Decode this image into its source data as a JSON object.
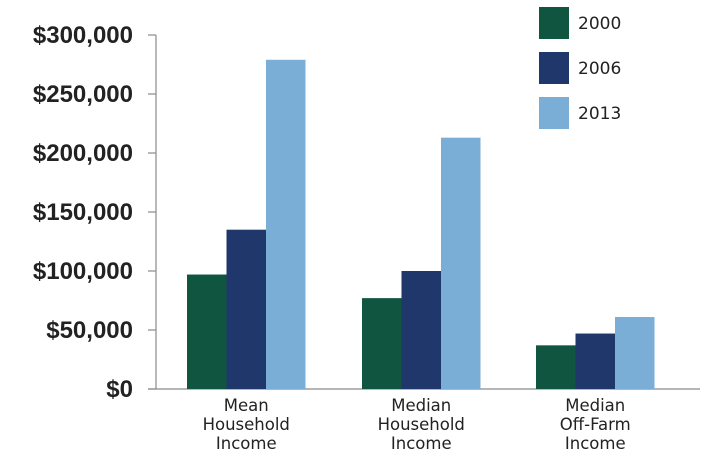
{
  "chart_data": {
    "type": "bar",
    "categories": [
      [
        "Mean",
        "Household",
        "Income"
      ],
      [
        "Median",
        "Household",
        "Income"
      ],
      [
        "Median",
        "Off-Farm",
        "Income"
      ]
    ],
    "series": [
      {
        "name": "2000",
        "color": "#10553f",
        "values": [
          97000,
          77000,
          37000
        ]
      },
      {
        "name": "2006",
        "color": "#1f376b",
        "values": [
          135000,
          100000,
          47000
        ]
      },
      {
        "name": "2013",
        "color": "#7aaed6",
        "values": [
          279000,
          213000,
          61000
        ]
      }
    ],
    "ylim": [
      0,
      300000
    ],
    "yticks": [
      0,
      50000,
      100000,
      150000,
      200000,
      250000,
      300000
    ],
    "ytick_labels": [
      "$0",
      "$50,000",
      "$100,000",
      "$150,000",
      "$200,000",
      "$250,000",
      "$300,000"
    ],
    "title": "",
    "xlabel": "",
    "ylabel": "",
    "legend_position": "top-right",
    "grid": false
  }
}
